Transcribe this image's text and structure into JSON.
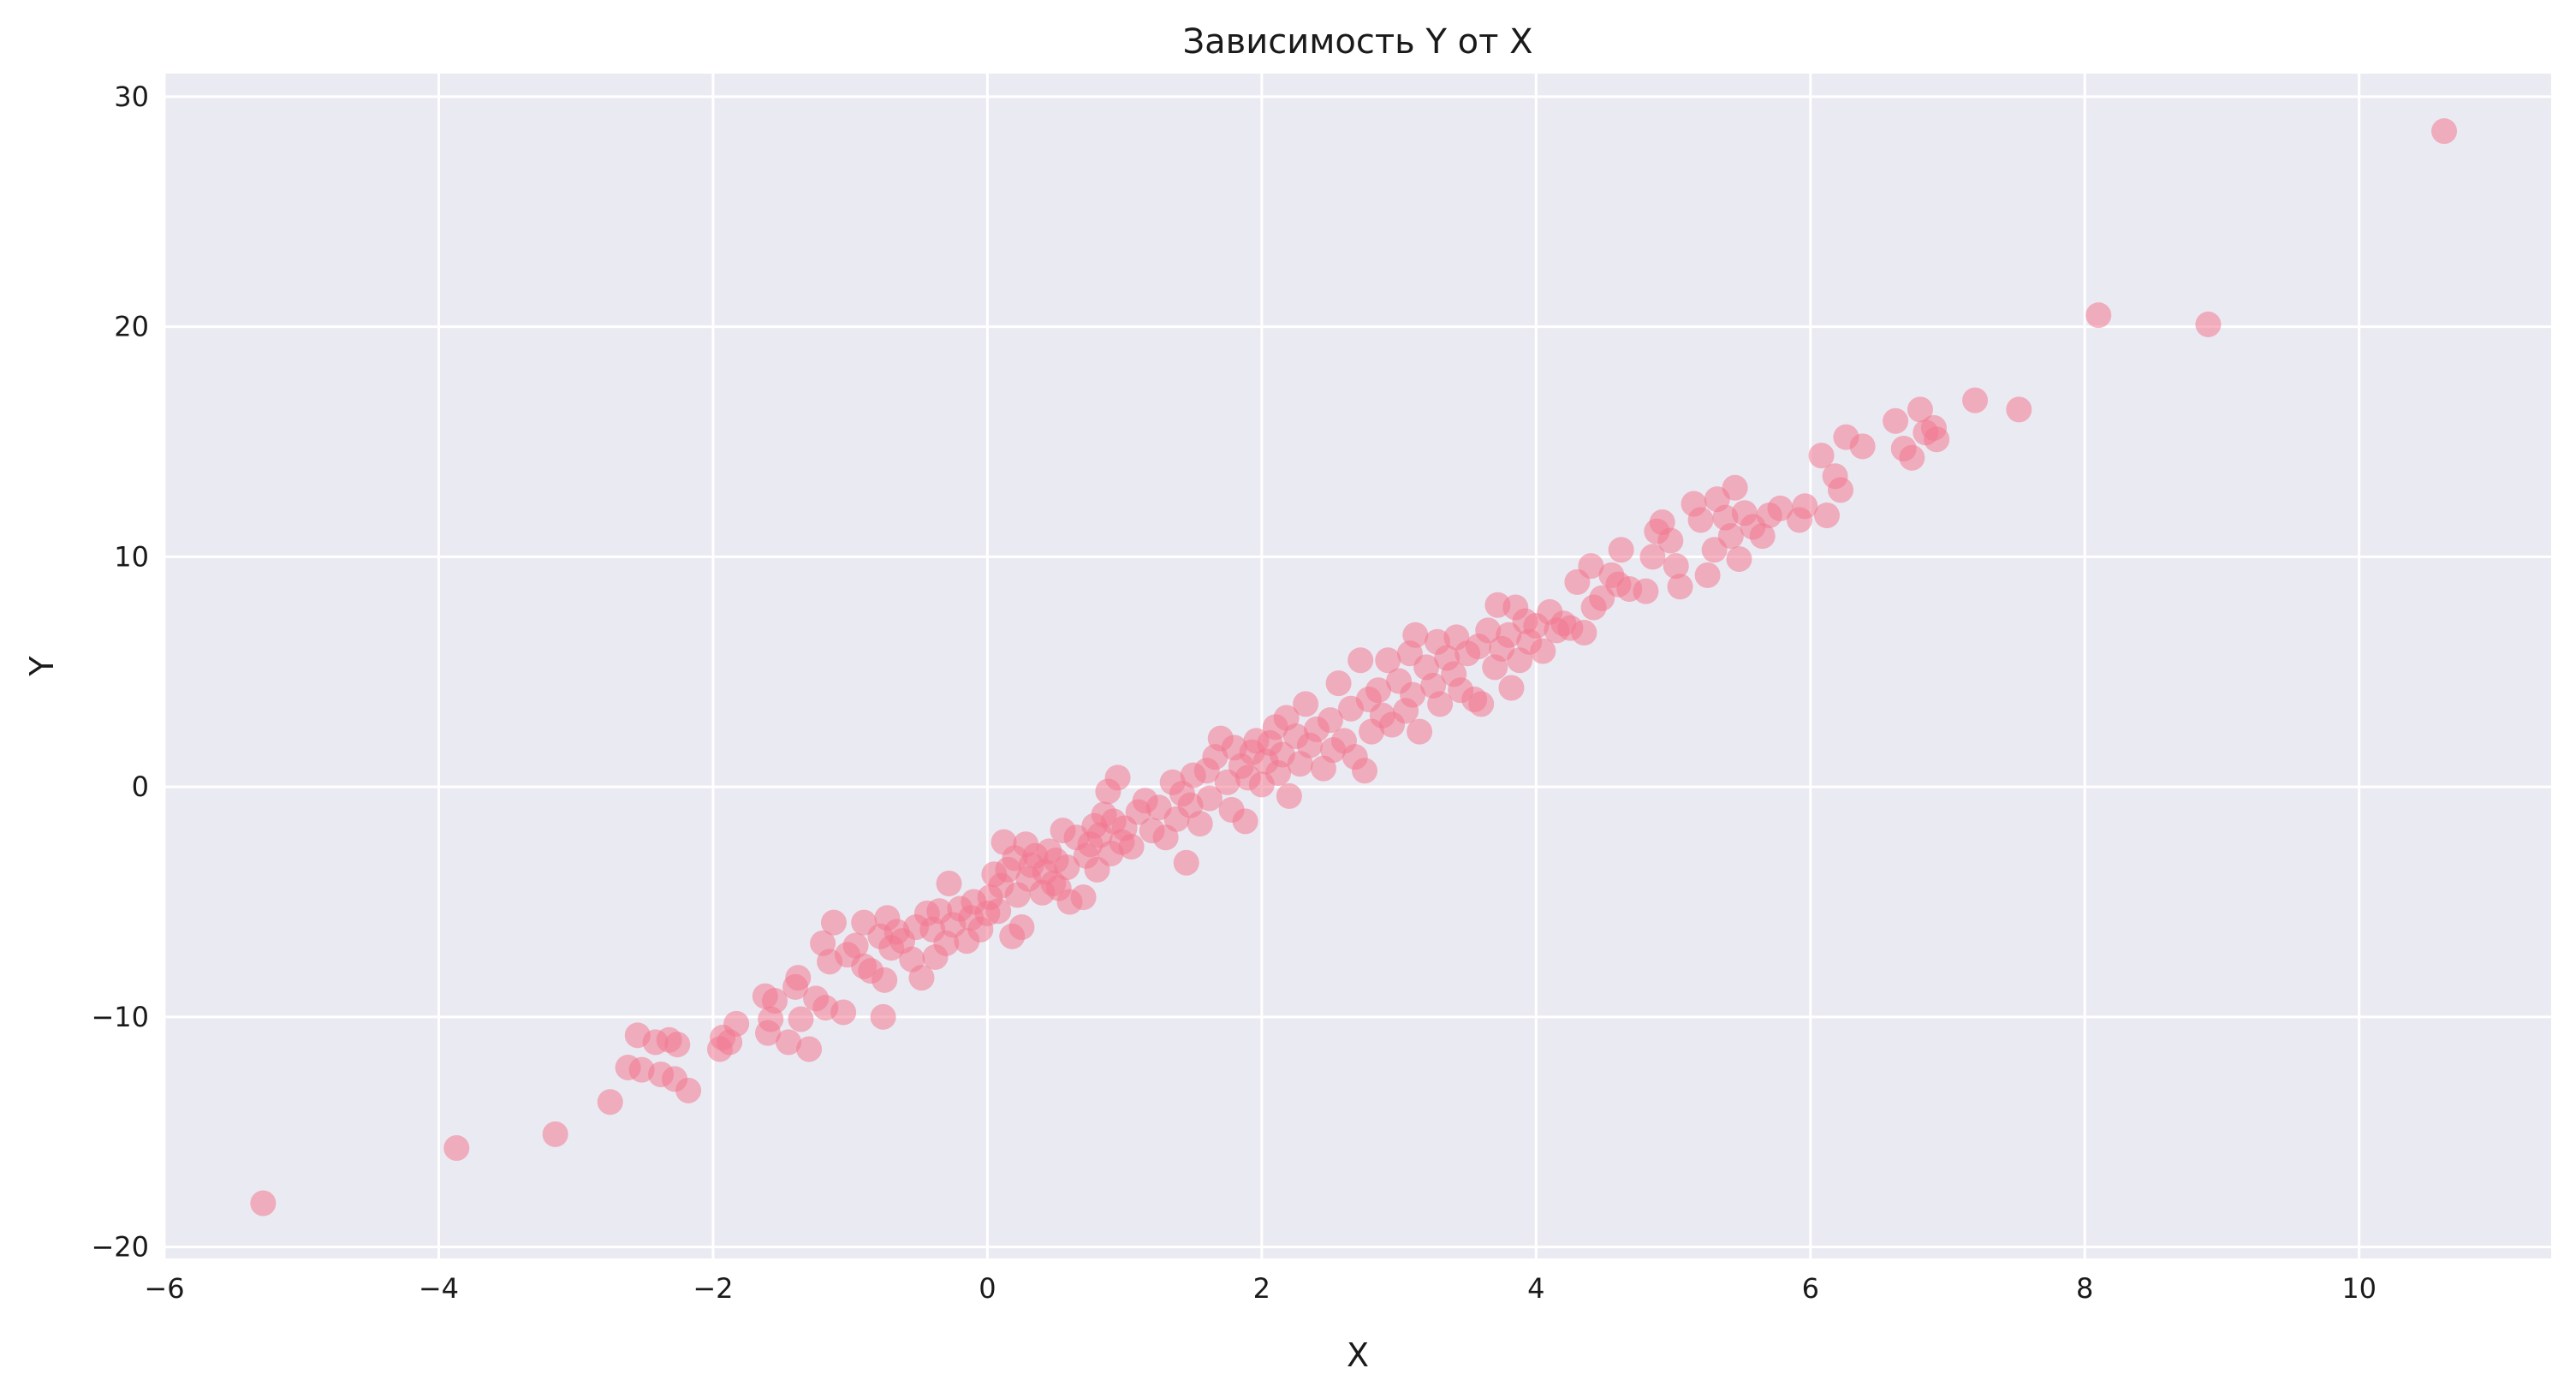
{
  "chart_data": {
    "type": "scatter",
    "title": "Зависимость Y от X",
    "xlabel": "X",
    "ylabel": "Y",
    "xlim": [
      -6.0,
      11.4
    ],
    "ylim": [
      -20.5,
      31.0
    ],
    "xticks": [
      -6,
      -4,
      -2,
      0,
      2,
      4,
      6,
      8,
      10
    ],
    "yticks": [
      -20,
      -10,
      0,
      10,
      20,
      30
    ],
    "xtick_labels": [
      "−6",
      "−4",
      "−2",
      "0",
      "2",
      "4",
      "6",
      "8",
      "10"
    ],
    "ytick_labels": [
      "−20",
      "−10",
      "0",
      "10",
      "20",
      "30"
    ],
    "grid": true,
    "colors": {
      "background": "#eaeaf2",
      "grid": "#ffffff",
      "point": "#f2798f"
    },
    "points": [
      [
        -5.28,
        -18.1
      ],
      [
        -3.87,
        -15.7
      ],
      [
        -3.15,
        -15.1
      ],
      [
        -2.75,
        -13.7
      ],
      [
        -2.62,
        -12.2
      ],
      [
        -2.55,
        -10.8
      ],
      [
        -2.52,
        -12.3
      ],
      [
        -2.42,
        -11.1
      ],
      [
        -2.38,
        -12.5
      ],
      [
        -2.32,
        -11.0
      ],
      [
        -2.28,
        -12.7
      ],
      [
        -2.26,
        -11.2
      ],
      [
        -2.18,
        -13.2
      ],
      [
        -1.95,
        -11.4
      ],
      [
        -1.93,
        -10.9
      ],
      [
        -1.88,
        -11.1
      ],
      [
        -1.83,
        -10.3
      ],
      [
        -1.62,
        -9.1
      ],
      [
        -1.6,
        -10.7
      ],
      [
        -1.58,
        -10.1
      ],
      [
        -1.55,
        -9.3
      ],
      [
        -1.45,
        -11.1
      ],
      [
        -1.4,
        -8.7
      ],
      [
        -1.38,
        -8.3
      ],
      [
        -1.36,
        -10.1
      ],
      [
        -1.3,
        -11.4
      ],
      [
        -1.25,
        -9.2
      ],
      [
        -1.2,
        -6.8
      ],
      [
        -1.18,
        -9.6
      ],
      [
        -1.15,
        -7.6
      ],
      [
        -1.12,
        -5.9
      ],
      [
        -1.05,
        -9.8
      ],
      [
        -1.02,
        -7.3
      ],
      [
        -0.96,
        -6.9
      ],
      [
        -0.9,
        -7.8
      ],
      [
        -0.9,
        -5.9
      ],
      [
        -0.85,
        -8.0
      ],
      [
        -0.78,
        -6.5
      ],
      [
        -0.76,
        -10.0
      ],
      [
        -0.75,
        -8.4
      ],
      [
        -0.73,
        -5.7
      ],
      [
        -0.7,
        -7.0
      ],
      [
        -0.66,
        -6.3
      ],
      [
        -0.62,
        -6.7
      ],
      [
        -0.55,
        -7.5
      ],
      [
        -0.52,
        -6.1
      ],
      [
        -0.48,
        -8.3
      ],
      [
        -0.44,
        -5.5
      ],
      [
        -0.4,
        -6.2
      ],
      [
        -0.38,
        -7.4
      ],
      [
        -0.35,
        -5.4
      ],
      [
        -0.3,
        -6.8
      ],
      [
        -0.28,
        -4.2
      ],
      [
        -0.25,
        -6.0
      ],
      [
        -0.2,
        -5.3
      ],
      [
        -0.15,
        -6.7
      ],
      [
        -0.12,
        -5.7
      ],
      [
        -0.1,
        -5.0
      ],
      [
        -0.05,
        -6.2
      ],
      [
        0.0,
        -5.5
      ],
      [
        0.02,
        -4.8
      ],
      [
        0.05,
        -3.8
      ],
      [
        0.08,
        -5.4
      ],
      [
        0.1,
        -4.3
      ],
      [
        0.12,
        -2.4
      ],
      [
        0.15,
        -3.6
      ],
      [
        0.18,
        -6.5
      ],
      [
        0.2,
        -3.1
      ],
      [
        0.22,
        -4.7
      ],
      [
        0.25,
        -6.1
      ],
      [
        0.28,
        -2.5
      ],
      [
        0.3,
        -4.0
      ],
      [
        0.32,
        -3.4
      ],
      [
        0.35,
        -3.0
      ],
      [
        0.4,
        -4.6
      ],
      [
        0.42,
        -3.7
      ],
      [
        0.45,
        -2.8
      ],
      [
        0.48,
        -4.2
      ],
      [
        0.5,
        -3.2
      ],
      [
        0.52,
        -4.4
      ],
      [
        0.55,
        -1.9
      ],
      [
        0.58,
        -3.5
      ],
      [
        0.6,
        -5.0
      ],
      [
        0.65,
        -2.2
      ],
      [
        0.7,
        -4.8
      ],
      [
        0.72,
        -3.0
      ],
      [
        0.75,
        -2.5
      ],
      [
        0.78,
        -1.7
      ],
      [
        0.8,
        -3.6
      ],
      [
        0.82,
        -2.1
      ],
      [
        0.85,
        -1.2
      ],
      [
        0.88,
        -0.2
      ],
      [
        0.9,
        -2.9
      ],
      [
        0.92,
        -1.5
      ],
      [
        0.95,
        0.4
      ],
      [
        0.98,
        -2.4
      ],
      [
        1.0,
        -1.8
      ],
      [
        1.05,
        -2.6
      ],
      [
        1.1,
        -1.1
      ],
      [
        1.15,
        -0.6
      ],
      [
        1.2,
        -1.9
      ],
      [
        1.25,
        -0.9
      ],
      [
        1.3,
        -2.2
      ],
      [
        1.35,
        0.2
      ],
      [
        1.38,
        -1.4
      ],
      [
        1.42,
        -0.3
      ],
      [
        1.45,
        -3.3
      ],
      [
        1.48,
        -0.8
      ],
      [
        1.5,
        0.5
      ],
      [
        1.55,
        -1.6
      ],
      [
        1.6,
        0.7
      ],
      [
        1.62,
        -0.5
      ],
      [
        1.66,
        1.3
      ],
      [
        1.7,
        2.1
      ],
      [
        1.75,
        0.2
      ],
      [
        1.78,
        -1.0
      ],
      [
        1.8,
        1.7
      ],
      [
        1.85,
        0.9
      ],
      [
        1.88,
        -1.5
      ],
      [
        1.9,
        0.4
      ],
      [
        1.93,
        1.5
      ],
      [
        1.96,
        2.0
      ],
      [
        2.0,
        0.1
      ],
      [
        2.03,
        1.1
      ],
      [
        2.06,
        1.9
      ],
      [
        2.1,
        2.6
      ],
      [
        2.12,
        0.6
      ],
      [
        2.15,
        1.4
      ],
      [
        2.18,
        3.0
      ],
      [
        2.2,
        -0.4
      ],
      [
        2.25,
        2.2
      ],
      [
        2.28,
        1.0
      ],
      [
        2.32,
        3.6
      ],
      [
        2.35,
        1.8
      ],
      [
        2.4,
        2.5
      ],
      [
        2.45,
        0.8
      ],
      [
        2.5,
        2.9
      ],
      [
        2.52,
        1.6
      ],
      [
        2.56,
        4.5
      ],
      [
        2.6,
        2.0
      ],
      [
        2.65,
        3.4
      ],
      [
        2.68,
        1.3
      ],
      [
        2.72,
        5.5
      ],
      [
        2.75,
        0.7
      ],
      [
        2.78,
        3.8
      ],
      [
        2.8,
        2.4
      ],
      [
        2.85,
        4.2
      ],
      [
        2.88,
        3.1
      ],
      [
        2.92,
        5.5
      ],
      [
        2.95,
        2.7
      ],
      [
        3.0,
        4.6
      ],
      [
        3.05,
        3.3
      ],
      [
        3.08,
        5.8
      ],
      [
        3.1,
        4.0
      ],
      [
        3.12,
        6.6
      ],
      [
        3.15,
        2.4
      ],
      [
        3.2,
        5.2
      ],
      [
        3.25,
        4.4
      ],
      [
        3.28,
        6.3
      ],
      [
        3.3,
        3.6
      ],
      [
        3.35,
        5.6
      ],
      [
        3.4,
        4.9
      ],
      [
        3.42,
        6.5
      ],
      [
        3.45,
        4.2
      ],
      [
        3.5,
        5.8
      ],
      [
        3.55,
        3.8
      ],
      [
        3.58,
        6.1
      ],
      [
        3.6,
        3.6
      ],
      [
        3.65,
        6.8
      ],
      [
        3.7,
        5.2
      ],
      [
        3.72,
        7.9
      ],
      [
        3.75,
        6.0
      ],
      [
        3.8,
        6.6
      ],
      [
        3.82,
        4.3
      ],
      [
        3.85,
        7.8
      ],
      [
        3.88,
        5.5
      ],
      [
        3.92,
        7.2
      ],
      [
        3.95,
        6.3
      ],
      [
        4.0,
        7.0
      ],
      [
        4.05,
        5.9
      ],
      [
        4.1,
        7.6
      ],
      [
        4.15,
        6.8
      ],
      [
        4.2,
        7.1
      ],
      [
        4.25,
        6.9
      ],
      [
        4.3,
        8.9
      ],
      [
        4.35,
        6.7
      ],
      [
        4.4,
        9.6
      ],
      [
        4.42,
        7.8
      ],
      [
        4.48,
        8.2
      ],
      [
        4.55,
        9.2
      ],
      [
        4.6,
        8.8
      ],
      [
        4.62,
        10.3
      ],
      [
        4.68,
        8.6
      ],
      [
        4.8,
        8.5
      ],
      [
        4.85,
        10.0
      ],
      [
        4.88,
        11.1
      ],
      [
        4.92,
        11.5
      ],
      [
        4.98,
        10.7
      ],
      [
        5.02,
        9.6
      ],
      [
        5.05,
        8.7
      ],
      [
        5.15,
        12.3
      ],
      [
        5.2,
        11.6
      ],
      [
        5.25,
        9.2
      ],
      [
        5.3,
        10.3
      ],
      [
        5.32,
        12.5
      ],
      [
        5.38,
        11.7
      ],
      [
        5.42,
        10.9
      ],
      [
        5.45,
        13.0
      ],
      [
        5.48,
        9.9
      ],
      [
        5.52,
        11.9
      ],
      [
        5.58,
        11.3
      ],
      [
        5.65,
        10.9
      ],
      [
        5.7,
        11.8
      ],
      [
        5.78,
        12.1
      ],
      [
        5.92,
        11.6
      ],
      [
        5.96,
        12.2
      ],
      [
        6.08,
        14.4
      ],
      [
        6.12,
        11.8
      ],
      [
        6.18,
        13.5
      ],
      [
        6.22,
        12.9
      ],
      [
        6.26,
        15.2
      ],
      [
        6.38,
        14.8
      ],
      [
        6.62,
        15.9
      ],
      [
        6.68,
        14.7
      ],
      [
        6.74,
        14.3
      ],
      [
        6.8,
        16.4
      ],
      [
        6.84,
        15.4
      ],
      [
        6.9,
        15.6
      ],
      [
        6.92,
        15.1
      ],
      [
        7.2,
        16.8
      ],
      [
        7.52,
        16.4
      ],
      [
        8.1,
        20.5
      ],
      [
        8.9,
        20.1
      ],
      [
        10.62,
        28.5
      ]
    ]
  }
}
